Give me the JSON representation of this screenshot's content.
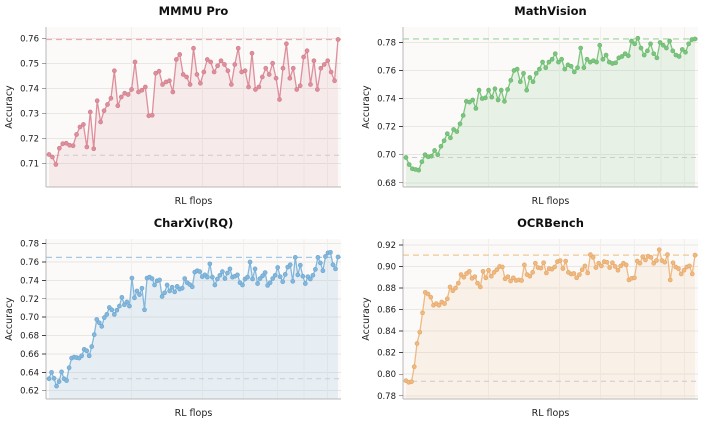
{
  "figure": {
    "background": "#ffffff",
    "grid_rows": 2,
    "grid_cols": 2
  },
  "chart_data": [
    {
      "type": "line",
      "slug": "mmmu-pro",
      "title": "MMMU Pro",
      "xlabel": "RL flops",
      "ylabel": "Accuracy",
      "ylim": [
        0.7005,
        0.7645
      ],
      "yticks": [
        0.71,
        0.72,
        0.73,
        0.74,
        0.75,
        0.76
      ],
      "ytick_labels": [
        "0.71",
        "0.72",
        "0.73",
        "0.74",
        "0.75",
        "0.76"
      ],
      "grid": true,
      "legend": "none",
      "line_color": "#de8f9c",
      "marker_edge": "#d27e8d",
      "fill_color": "rgba(222,143,156,0.14)",
      "ref_max": {
        "value": 0.7595,
        "style": "dashed",
        "color": "#ecaab4"
      },
      "ref_base": {
        "value": 0.7132,
        "style": "dashed",
        "color": "#cbcbcb"
      },
      "values": [
        0.7135,
        0.7125,
        0.7095,
        0.716,
        0.7178,
        0.718,
        0.7172,
        0.717,
        0.7215,
        0.7245,
        0.7255,
        0.7165,
        0.7305,
        0.7158,
        0.735,
        0.7265,
        0.731,
        0.7335,
        0.736,
        0.747,
        0.733,
        0.7365,
        0.738,
        0.7375,
        0.7395,
        0.7505,
        0.7385,
        0.7392,
        0.7405,
        0.729,
        0.7292,
        0.746,
        0.7468,
        0.7415,
        0.7425,
        0.743,
        0.7385,
        0.7515,
        0.7535,
        0.7455,
        0.7445,
        0.7415,
        0.756,
        0.7455,
        0.742,
        0.7465,
        0.7515,
        0.7505,
        0.7465,
        0.749,
        0.751,
        0.7495,
        0.747,
        0.7415,
        0.7495,
        0.756,
        0.7465,
        0.747,
        0.7405,
        0.754,
        0.7395,
        0.7405,
        0.7445,
        0.748,
        0.7455,
        0.75,
        0.744,
        0.7355,
        0.748,
        0.7578,
        0.744,
        0.748,
        0.7395,
        0.741,
        0.7525,
        0.755,
        0.7415,
        0.751,
        0.7395,
        0.748,
        0.7495,
        0.751,
        0.7465,
        0.743,
        0.7595
      ]
    },
    {
      "type": "line",
      "slug": "mathvision",
      "title": "MathVision",
      "xlabel": "RL flops",
      "ylabel": "Accuracy",
      "ylim": [
        0.677,
        0.791
      ],
      "yticks": [
        0.68,
        0.7,
        0.72,
        0.74,
        0.76,
        0.78
      ],
      "ytick_labels": [
        "0.68",
        "0.70",
        "0.72",
        "0.74",
        "0.76",
        "0.78"
      ],
      "grid": true,
      "legend": "none",
      "line_color": "#7dc57f",
      "marker_edge": "#6ab96e",
      "fill_color": "rgba(125,197,127,0.15)",
      "ref_max": {
        "value": 0.7825,
        "style": "dashed",
        "color": "#9bd49d"
      },
      "ref_base": {
        "value": 0.698,
        "style": "dashed",
        "color": "#cbcbcb"
      },
      "values": [
        0.698,
        0.693,
        0.69,
        0.6895,
        0.689,
        0.695,
        0.7,
        0.6985,
        0.699,
        0.703,
        0.7,
        0.706,
        0.71,
        0.715,
        0.712,
        0.718,
        0.7165,
        0.722,
        0.728,
        0.738,
        0.7375,
        0.739,
        0.733,
        0.746,
        0.74,
        0.7405,
        0.746,
        0.741,
        0.747,
        0.739,
        0.746,
        0.738,
        0.7465,
        0.753,
        0.76,
        0.761,
        0.752,
        0.758,
        0.746,
        0.755,
        0.752,
        0.758,
        0.761,
        0.766,
        0.762,
        0.766,
        0.768,
        0.772,
        0.766,
        0.768,
        0.761,
        0.764,
        0.763,
        0.759,
        0.762,
        0.776,
        0.762,
        0.768,
        0.766,
        0.767,
        0.766,
        0.778,
        0.768,
        0.771,
        0.766,
        0.765,
        0.7655,
        0.769,
        0.77,
        0.772,
        0.7705,
        0.781,
        0.779,
        0.783,
        0.776,
        0.771,
        0.774,
        0.779,
        0.772,
        0.769,
        0.78,
        0.778,
        0.776,
        0.781,
        0.774,
        0.771,
        0.77,
        0.775,
        0.773,
        0.779,
        0.782,
        0.7825
      ]
    },
    {
      "type": "line",
      "slug": "charxiv-rq",
      "title": "CharXiv(RQ)",
      "xlabel": "RL flops",
      "ylabel": "Accuracy",
      "ylim": [
        0.611,
        0.785
      ],
      "yticks": [
        0.62,
        0.64,
        0.66,
        0.68,
        0.7,
        0.72,
        0.74,
        0.76,
        0.78
      ],
      "ytick_labels": [
        "0.62",
        "0.64",
        "0.66",
        "0.68",
        "0.70",
        "0.72",
        "0.74",
        "0.76",
        "0.78"
      ],
      "grid": true,
      "legend": "none",
      "line_color": "#83b7dc",
      "marker_edge": "#6fa8d2",
      "fill_color": "rgba(131,183,220,0.16)",
      "ref_max": {
        "value": 0.765,
        "style": "dashed",
        "color": "#a3c8e5"
      },
      "ref_base": {
        "value": 0.633,
        "style": "dashed",
        "color": "#cbcbcb"
      },
      "values": [
        0.633,
        0.64,
        0.6335,
        0.625,
        0.63,
        0.6405,
        0.633,
        0.631,
        0.645,
        0.6555,
        0.6565,
        0.656,
        0.6555,
        0.658,
        0.665,
        0.6635,
        0.658,
        0.668,
        0.681,
        0.6975,
        0.694,
        0.69,
        0.6995,
        0.703,
        0.7105,
        0.708,
        0.703,
        0.7075,
        0.712,
        0.7215,
        0.7135,
        0.7165,
        0.712,
        0.7425,
        0.721,
        0.7285,
        0.7245,
        0.7315,
        0.708,
        0.7425,
        0.7435,
        0.742,
        0.735,
        0.7395,
        0.7405,
        0.7225,
        0.7265,
        0.735,
        0.7285,
        0.7325,
        0.7275,
        0.7335,
        0.7305,
        0.7315,
        0.742,
        0.7375,
        0.7355,
        0.733,
        0.749,
        0.7505,
        0.7495,
        0.744,
        0.746,
        0.7435,
        0.758,
        0.7435,
        0.735,
        0.7415,
        0.7455,
        0.7495,
        0.742,
        0.748,
        0.7525,
        0.7435,
        0.7445,
        0.746,
        0.7375,
        0.735,
        0.7415,
        0.7435,
        0.76,
        0.7415,
        0.7525,
        0.7365,
        0.742,
        0.745,
        0.7485,
        0.7345,
        0.7375,
        0.742,
        0.7455,
        0.754,
        0.744,
        0.7385,
        0.7465,
        0.7545,
        0.757,
        0.739,
        0.765,
        0.746,
        0.7565,
        0.7445,
        0.7365,
        0.744,
        0.7415,
        0.7455,
        0.752,
        0.765,
        0.759,
        0.7505,
        0.766,
        0.77,
        0.7705,
        0.757,
        0.7525,
        0.7655
      ]
    },
    {
      "type": "line",
      "slug": "ocrbench",
      "title": "OCRBench",
      "xlabel": "RL flops",
      "ylabel": "Accuracy",
      "ylim": [
        0.777,
        0.9255
      ],
      "yticks": [
        0.78,
        0.8,
        0.82,
        0.84,
        0.86,
        0.88,
        0.9,
        0.92
      ],
      "ytick_labels": [
        "0.78",
        "0.80",
        "0.82",
        "0.84",
        "0.86",
        "0.88",
        "0.90",
        "0.92"
      ],
      "grid": true,
      "legend": "none",
      "line_color": "#efb983",
      "marker_edge": "#e6a869",
      "fill_color": "rgba(239,185,131,0.15)",
      "ref_max": {
        "value": 0.9105,
        "style": "dashed",
        "color": "#f3c893"
      },
      "ref_base": {
        "value": 0.7935,
        "style": "dashed",
        "color": "#cbcbcb"
      },
      "values": [
        0.794,
        0.7925,
        0.793,
        0.807,
        0.8285,
        0.839,
        0.857,
        0.876,
        0.8745,
        0.8715,
        0.864,
        0.8655,
        0.864,
        0.867,
        0.8655,
        0.87,
        0.881,
        0.8775,
        0.88,
        0.8845,
        0.8925,
        0.89,
        0.8935,
        0.8955,
        0.889,
        0.8905,
        0.8845,
        0.881,
        0.8955,
        0.8895,
        0.8965,
        0.891,
        0.8945,
        0.897,
        0.9,
        0.8995,
        0.8885,
        0.8905,
        0.8865,
        0.8895,
        0.887,
        0.8875,
        0.887,
        0.9015,
        0.8925,
        0.891,
        0.8945,
        0.903,
        0.899,
        0.8985,
        0.9035,
        0.894,
        0.898,
        0.8975,
        0.8995,
        0.9045,
        0.9055,
        0.898,
        0.905,
        0.8945,
        0.893,
        0.8935,
        0.8895,
        0.8925,
        0.897,
        0.9005,
        0.894,
        0.911,
        0.9085,
        0.899,
        0.903,
        0.9005,
        0.9045,
        0.904,
        0.899,
        0.9035,
        0.9,
        0.8965,
        0.9005,
        0.903,
        0.9015,
        0.8875,
        0.889,
        0.8895,
        0.905,
        0.903,
        0.909,
        0.906,
        0.9095,
        0.9085,
        0.903,
        0.9055,
        0.9155,
        0.9055,
        0.904,
        0.911,
        0.8875,
        0.9035,
        0.8995,
        0.898,
        0.893,
        0.8965,
        0.8995,
        0.9005,
        0.893,
        0.9105
      ]
    }
  ],
  "style": {
    "axes_background": "#fbfaf8",
    "gridline_color": "#e8e7e4",
    "vgridline_color": "#f0efec",
    "spine_color": "#b8b8b8",
    "tick_color": "#444444",
    "tick_label_color": "#1a1a1a",
    "title_color": "#111111"
  }
}
